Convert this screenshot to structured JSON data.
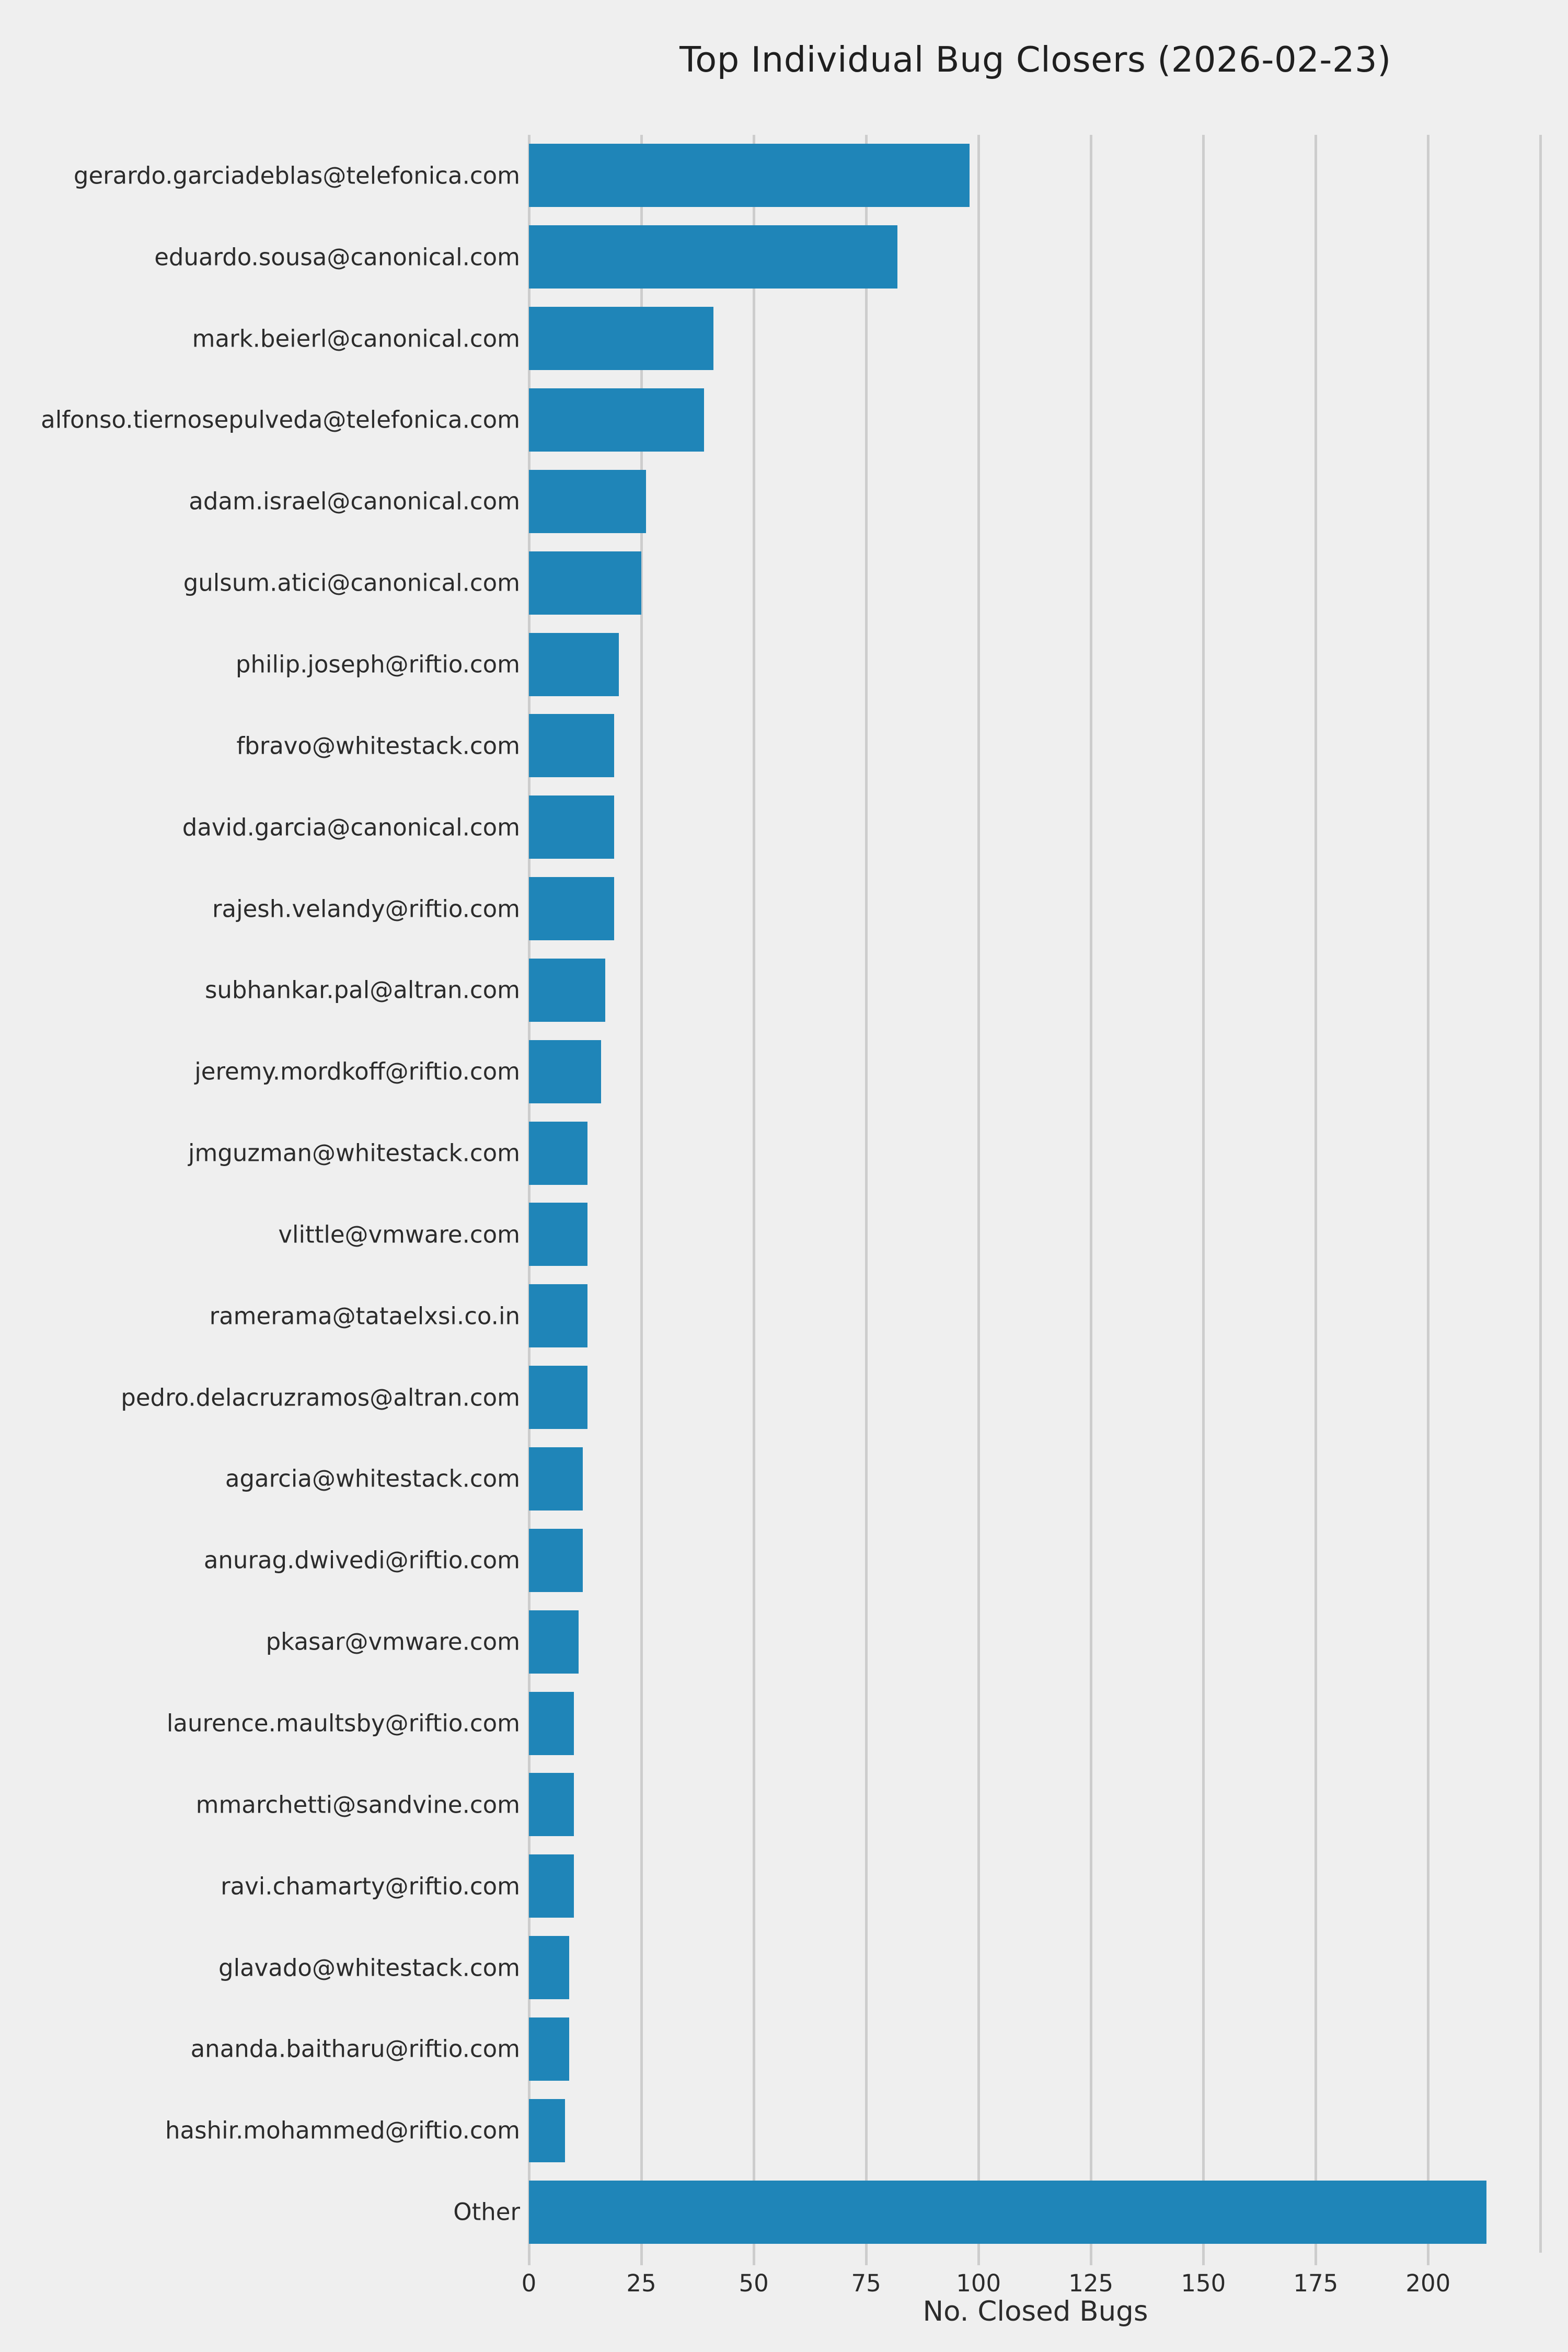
{
  "figure": {
    "background_color": "#efefef",
    "bar_color": "#1f85b8",
    "gridline_color": "#cdcdcd",
    "text_color": "#2b2b2b"
  },
  "chart_data": {
    "type": "bar",
    "orientation": "horizontal",
    "title": "Top Individual Bug Closers (2026-02-23)",
    "xlabel": "No. Closed Bugs",
    "ylabel": "",
    "xlim": [
      0,
      225.3
    ],
    "x_ticks": [
      0,
      25,
      50,
      75,
      100,
      125,
      150,
      175,
      200
    ],
    "grid": "vertical",
    "legend": "none",
    "categories": [
      "gerardo.garciadeblas@telefonica.com",
      "eduardo.sousa@canonical.com",
      "mark.beierl@canonical.com",
      "alfonso.tiernosepulveda@telefonica.com",
      "adam.israel@canonical.com",
      "gulsum.atici@canonical.com",
      "philip.joseph@riftio.com",
      "fbravo@whitestack.com",
      "david.garcia@canonical.com",
      "rajesh.velandy@riftio.com",
      "subhankar.pal@altran.com",
      "jeremy.mordkoff@riftio.com",
      "jmguzman@whitestack.com",
      "vlittle@vmware.com",
      "ramerama@tataelxsi.co.in",
      "pedro.delacruzramos@altran.com",
      "agarcia@whitestack.com",
      "anurag.dwivedi@riftio.com",
      "pkasar@vmware.com",
      "laurence.maultsby@riftio.com",
      "mmarchetti@sandvine.com",
      "ravi.chamarty@riftio.com",
      "glavado@whitestack.com",
      "ananda.baitharu@riftio.com",
      "hashir.mohammed@riftio.com",
      "Other"
    ],
    "values": [
      98,
      82,
      41,
      39,
      26,
      25,
      20,
      19,
      19,
      19,
      17,
      16,
      13,
      13,
      13,
      13,
      12,
      12,
      11,
      10,
      10,
      10,
      9,
      9,
      8,
      213
    ]
  }
}
